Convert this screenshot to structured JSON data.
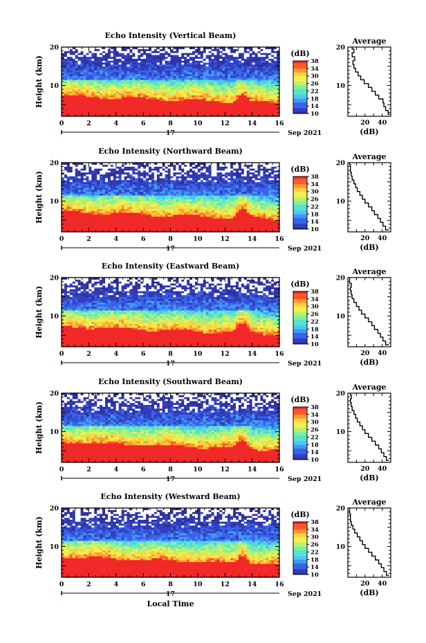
{
  "figure": {
    "bottom_xlabel": "Local Time",
    "avg_title": "Average",
    "avg_xlabel": "(dB)",
    "cbar_label": "(dB)",
    "ylabel": "Height (km)",
    "date_day": "17",
    "date_month": "Sep 2021"
  },
  "colors": {
    "colormap": [
      "#30309a",
      "#2f3fc0",
      "#3a63e8",
      "#3f9af4",
      "#4dc8f0",
      "#56e3d0",
      "#7ff0a0",
      "#b8f070",
      "#eef050",
      "#ffd23c",
      "#ff9a30",
      "#ff5a28",
      "#f02828"
    ],
    "missing": "#ffffff",
    "axes": "#000000"
  },
  "chart_data": [
    {
      "type": "heatmap",
      "title": "Echo Intensity (Vertical Beam)",
      "x_ticks": [
        "0",
        "2",
        "4",
        "6",
        "8",
        "10",
        "12",
        "14",
        "16"
      ],
      "y_ticks": [
        "20",
        "10"
      ],
      "xlim": [
        0,
        16
      ],
      "ylim": [
        2,
        20
      ],
      "cbar_ticks": [
        "38",
        "34",
        "30",
        "26",
        "22",
        "18",
        "14",
        "10"
      ],
      "zlim": [
        10,
        38
      ],
      "profile_x_ticks": [
        "20",
        "40"
      ],
      "profile_y_ticks": [
        "20",
        "10"
      ],
      "profile_xlim": [
        0,
        50
      ],
      "profile": [
        [
          49,
          2.5
        ],
        [
          47,
          3.5
        ],
        [
          44,
          4.5
        ],
        [
          42,
          5.5
        ],
        [
          41,
          6.5
        ],
        [
          36,
          7.5
        ],
        [
          32,
          8.5
        ],
        [
          28,
          9.5
        ],
        [
          24,
          10.5
        ],
        [
          19,
          11.5
        ],
        [
          15,
          12.5
        ],
        [
          12,
          13.5
        ],
        [
          9,
          14.5
        ],
        [
          7,
          15.5
        ],
        [
          6,
          16.5
        ],
        [
          8,
          17.5
        ],
        [
          5,
          18.5
        ],
        [
          7,
          19.5
        ],
        [
          5,
          20
        ]
      ]
    },
    {
      "type": "heatmap",
      "title": "Echo Intensity (Northward Beam)",
      "x_ticks": [
        "0",
        "2",
        "4",
        "6",
        "8",
        "10",
        "12",
        "14",
        "16"
      ],
      "y_ticks": [
        "20",
        "10"
      ],
      "xlim": [
        0,
        16
      ],
      "ylim": [
        2,
        20
      ],
      "cbar_ticks": [
        "38",
        "34",
        "30",
        "26",
        "22",
        "18",
        "14",
        "10"
      ],
      "zlim": [
        10,
        38
      ],
      "profile_x_ticks": [
        "20",
        "40"
      ],
      "profile_y_ticks": [
        "20",
        "10"
      ],
      "profile_xlim": [
        0,
        50
      ],
      "profile": [
        [
          48,
          2.5
        ],
        [
          44,
          3.5
        ],
        [
          41,
          4.5
        ],
        [
          38,
          5.5
        ],
        [
          35,
          6.5
        ],
        [
          31,
          7.5
        ],
        [
          28,
          8.5
        ],
        [
          24,
          9.5
        ],
        [
          20,
          10.5
        ],
        [
          17,
          11.5
        ],
        [
          14,
          12.5
        ],
        [
          11,
          13.5
        ],
        [
          9,
          14.5
        ],
        [
          7,
          15.5
        ],
        [
          5,
          16.5
        ],
        [
          4,
          17.5
        ],
        [
          3,
          18.5
        ],
        [
          3,
          19.5
        ],
        [
          2,
          20
        ]
      ]
    },
    {
      "type": "heatmap",
      "title": "Echo Intensity (Eastward Beam)",
      "x_ticks": [
        "0",
        "2",
        "4",
        "6",
        "8",
        "10",
        "12",
        "14",
        "16"
      ],
      "y_ticks": [
        "20",
        "10"
      ],
      "xlim": [
        0,
        16
      ],
      "ylim": [
        2,
        20
      ],
      "cbar_ticks": [
        "38",
        "34",
        "30",
        "26",
        "22",
        "18",
        "14",
        "10"
      ],
      "zlim": [
        10,
        38
      ],
      "profile_x_ticks": [
        "20",
        "40"
      ],
      "profile_y_ticks": [
        "20",
        "10"
      ],
      "profile_xlim": [
        0,
        50
      ],
      "profile": [
        [
          48,
          2.5
        ],
        [
          44,
          3.5
        ],
        [
          41,
          4.5
        ],
        [
          38,
          5.5
        ],
        [
          35,
          6.5
        ],
        [
          31,
          7.5
        ],
        [
          28,
          8.5
        ],
        [
          24,
          9.5
        ],
        [
          20,
          10.5
        ],
        [
          16,
          11.5
        ],
        [
          13,
          12.5
        ],
        [
          10,
          13.5
        ],
        [
          7,
          14.5
        ],
        [
          5,
          15.5
        ],
        [
          4,
          16.5
        ],
        [
          3,
          17.5
        ],
        [
          4,
          18.5
        ],
        [
          2,
          19.5
        ],
        [
          2,
          20
        ]
      ]
    },
    {
      "type": "heatmap",
      "title": "Echo Intensity (Southward Beam)",
      "x_ticks": [
        "0",
        "2",
        "4",
        "6",
        "8",
        "10",
        "12",
        "14",
        "16"
      ],
      "y_ticks": [
        "20",
        "10"
      ],
      "xlim": [
        0,
        16
      ],
      "ylim": [
        2,
        20
      ],
      "cbar_ticks": [
        "38",
        "34",
        "30",
        "26",
        "22",
        "18",
        "14",
        "10"
      ],
      "zlim": [
        10,
        38
      ],
      "profile_x_ticks": [
        "20",
        "40"
      ],
      "profile_y_ticks": [
        "20",
        "10"
      ],
      "profile_xlim": [
        0,
        50
      ],
      "profile": [
        [
          48,
          2.5
        ],
        [
          45,
          3.5
        ],
        [
          42,
          4.5
        ],
        [
          39,
          5.5
        ],
        [
          36,
          6.5
        ],
        [
          32,
          7.5
        ],
        [
          28,
          8.5
        ],
        [
          24,
          9.5
        ],
        [
          20,
          10.5
        ],
        [
          17,
          11.5
        ],
        [
          14,
          12.5
        ],
        [
          11,
          13.5
        ],
        [
          9,
          14.5
        ],
        [
          7,
          15.5
        ],
        [
          5,
          16.5
        ],
        [
          4,
          17.5
        ],
        [
          3,
          18.5
        ],
        [
          4,
          19.5
        ],
        [
          3,
          20
        ]
      ]
    },
    {
      "type": "heatmap",
      "title": "Echo Intensity (Westward Beam)",
      "x_ticks": [
        "0",
        "2",
        "4",
        "6",
        "8",
        "10",
        "12",
        "14",
        "16"
      ],
      "y_ticks": [
        "20",
        "10"
      ],
      "xlim": [
        0,
        16
      ],
      "ylim": [
        2,
        20
      ],
      "cbar_ticks": [
        "38",
        "34",
        "30",
        "26",
        "22",
        "18",
        "14",
        "10"
      ],
      "zlim": [
        10,
        38
      ],
      "profile_x_ticks": [
        "20",
        "40"
      ],
      "profile_y_ticks": [
        "20",
        "10"
      ],
      "profile_xlim": [
        0,
        50
      ],
      "profile": [
        [
          48,
          2.5
        ],
        [
          45,
          3.5
        ],
        [
          42,
          4.5
        ],
        [
          39,
          5.5
        ],
        [
          36,
          6.5
        ],
        [
          32,
          7.5
        ],
        [
          28,
          8.5
        ],
        [
          24,
          9.5
        ],
        [
          20,
          10.5
        ],
        [
          17,
          11.5
        ],
        [
          14,
          12.5
        ],
        [
          11,
          13.5
        ],
        [
          8,
          14.5
        ],
        [
          6,
          15.5
        ],
        [
          4,
          16.5
        ],
        [
          3,
          17.5
        ],
        [
          3,
          18.5
        ],
        [
          2,
          19.5
        ],
        [
          2,
          20
        ]
      ]
    }
  ]
}
